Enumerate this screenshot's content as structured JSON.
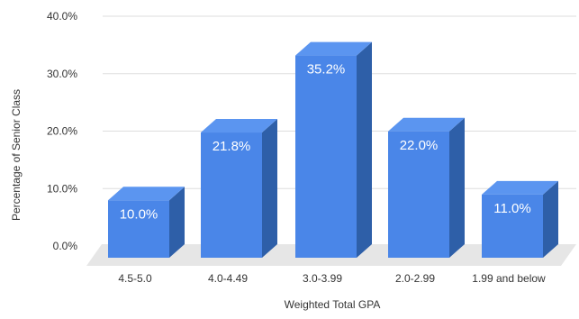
{
  "chart_data": {
    "type": "bar",
    "style": "3d",
    "title": "",
    "xlabel": "Weighted Total GPA",
    "ylabel": "Percentage of Senior Class",
    "categories": [
      "4.5-5.0",
      "4.0-4.49",
      "3.0-3.99",
      "2.0-2.99",
      "1.99 and below"
    ],
    "values": [
      10.0,
      21.8,
      35.2,
      22.0,
      11.0
    ],
    "data_labels": [
      "10.0%",
      "21.8%",
      "35.2%",
      "22.0%",
      "11.0%"
    ],
    "y_ticks": [
      0,
      10,
      20,
      30,
      40
    ],
    "y_tick_labels": [
      "0.0%",
      "10.0%",
      "20.0%",
      "30.0%",
      "40.0%"
    ],
    "ylim": [
      0,
      40
    ],
    "grid": true,
    "legend": "none",
    "colors": {
      "bar_front": "#4A86E8",
      "bar_top": "#5B95F0",
      "bar_side": "#2E5FA8",
      "floor": "#E6E6E6",
      "grid": "#DDDDDD",
      "label_text": "#FFFFFF",
      "axis_text": "#333333"
    }
  }
}
